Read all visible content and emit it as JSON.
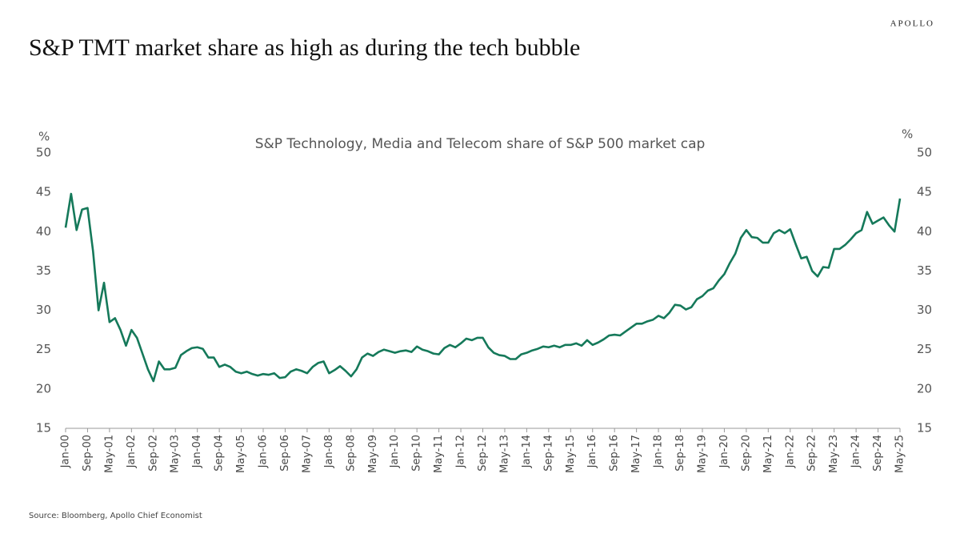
{
  "brand": "APOLLO",
  "chart_data": {
    "type": "line",
    "title": "S&P TMT market share as high as during the tech bubble",
    "subtitle": "S&P Technology, Media and Telecom share of S&P 500 market cap",
    "y_label": "%",
    "y2_label": "%",
    "source": "Source: Bloomberg, Apollo Chief Economist",
    "color": "#15795a",
    "grid": false,
    "categories": [
      "Jan-00",
      null,
      null,
      null,
      "Sep-00",
      null,
      null,
      null,
      "May-01",
      null,
      null,
      null,
      "Jan-02",
      null,
      null,
      null,
      "Sep-02",
      null,
      null,
      null,
      "May-03",
      null,
      null,
      null,
      "Jan-04",
      null,
      null,
      null,
      "Sep-04",
      null,
      null,
      null,
      "May-05",
      null,
      null,
      null,
      "Jan-06",
      null,
      null,
      null,
      "Sep-06",
      null,
      null,
      null,
      "May-07",
      null,
      null,
      null,
      "Jan-08",
      null,
      null,
      null,
      "Sep-08",
      null,
      null,
      null,
      "May-09",
      null,
      null,
      null,
      "Jan-10",
      null,
      null,
      null,
      "Sep-10",
      null,
      null,
      null,
      "May-11",
      null,
      null,
      null,
      "Jan-12",
      null,
      null,
      null,
      "Sep-12",
      null,
      null,
      null,
      "May-13",
      null,
      null,
      null,
      "Jan-14",
      null,
      null,
      null,
      "Sep-14",
      null,
      null,
      null,
      "May-15",
      null,
      null,
      null,
      "Jan-16",
      null,
      null,
      null,
      "Sep-16",
      null,
      null,
      null,
      "May-17",
      null,
      null,
      null,
      "Jan-18",
      null,
      null,
      null,
      "Sep-18",
      null,
      null,
      null,
      "May-19",
      null,
      null,
      null,
      "Jan-20",
      null,
      null,
      null,
      "Sep-20",
      null,
      null,
      null,
      "May-21",
      null,
      null,
      null,
      "Jan-22",
      null,
      null,
      null,
      "Sep-22",
      null,
      null,
      null,
      "May-23",
      null,
      null,
      null,
      "Jan-24",
      null,
      null,
      null,
      "Sep-24",
      null,
      null,
      null,
      "May-25"
    ],
    "values": [
      40.5,
      44.8,
      40.2,
      42.8,
      43.0,
      37.5,
      30.0,
      33.5,
      28.5,
      29.0,
      27.5,
      25.5,
      27.5,
      26.5,
      24.5,
      22.5,
      21.0,
      23.5,
      22.5,
      22.5,
      22.7,
      24.3,
      24.8,
      25.2,
      25.3,
      25.1,
      24.0,
      24.0,
      22.8,
      23.1,
      22.8,
      22.2,
      22.0,
      22.2,
      21.9,
      21.7,
      21.9,
      21.8,
      22.0,
      21.4,
      21.5,
      22.2,
      22.5,
      22.3,
      22.0,
      22.8,
      23.3,
      23.5,
      22.0,
      22.4,
      22.9,
      22.3,
      21.6,
      22.5,
      24.0,
      24.5,
      24.2,
      24.7,
      25.0,
      24.8,
      24.6,
      24.8,
      24.9,
      24.7,
      25.4,
      25.0,
      24.8,
      24.5,
      24.4,
      25.2,
      25.6,
      25.3,
      25.8,
      26.4,
      26.2,
      26.5,
      26.5,
      25.3,
      24.6,
      24.3,
      24.2,
      23.8,
      23.8,
      24.4,
      24.6,
      24.9,
      25.1,
      25.4,
      25.3,
      25.5,
      25.3,
      25.6,
      25.6,
      25.8,
      25.5,
      26.2,
      25.6,
      25.9,
      26.3,
      26.8,
      26.9,
      26.8,
      27.3,
      27.8,
      28.3,
      28.3,
      28.6,
      28.8,
      29.3,
      29.0,
      29.7,
      30.7,
      30.6,
      30.1,
      30.4,
      31.4,
      31.8,
      32.5,
      32.8,
      33.8,
      34.6,
      36.0,
      37.2,
      39.2,
      40.2,
      39.3,
      39.2,
      38.6,
      38.6,
      39.8,
      40.2,
      39.8,
      40.3,
      38.4,
      36.6,
      36.8,
      35.0,
      34.3,
      35.5,
      35.4,
      37.8,
      37.8,
      38.3,
      39.0,
      39.8,
      40.2,
      42.5,
      41.0,
      41.4,
      41.8,
      40.8,
      40.0,
      44.2
    ],
    "ylim": [
      15,
      50
    ],
    "yticks": [
      15,
      20,
      25,
      30,
      35,
      40,
      45,
      50
    ],
    "y2lim": [
      15,
      50
    ],
    "y2ticks": [
      15,
      20,
      25,
      30,
      35,
      40,
      45,
      50
    ]
  }
}
